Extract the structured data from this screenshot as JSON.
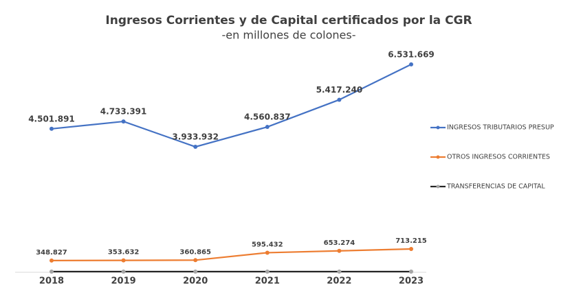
{
  "chart_data": {
    "type": "line",
    "title": "Ingresos Corrientes y de Capital certificados por la CGR",
    "subtitle": "-en millones de colones-",
    "categories": [
      "2018",
      "2019",
      "2020",
      "2021",
      "2022",
      "2023"
    ],
    "series": [
      {
        "name": "INGRESOS TRIBUTARIOS PRESUP",
        "color": "#4472c4",
        "values": [
          4501891,
          4733391,
          3933932,
          4560837,
          5417240,
          6531669
        ],
        "value_labels": [
          "4.501.891",
          "4.733.391",
          "3.933.932",
          "4.560.837",
          "5.417.240",
          "6.531.669"
        ]
      },
      {
        "name": "OTROS INGRESOS CORRIENTES",
        "color": "#ed7d31",
        "values": [
          348827,
          353632,
          360865,
          595432,
          653274,
          713215
        ],
        "value_labels": [
          "348.827",
          "353.632",
          "360.865",
          "595.432",
          "653.274",
          "713.215"
        ]
      },
      {
        "name": "TRANSFERENCIAS DE CAPITAL",
        "color": "#262626",
        "values": [
          0,
          0,
          0,
          0,
          0,
          0
        ]
      }
    ],
    "ylim": [
      0,
      7200000
    ],
    "legend": "right"
  }
}
